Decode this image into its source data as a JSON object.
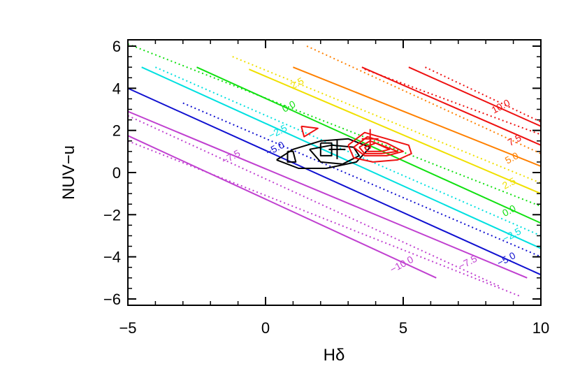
{
  "chart_data": {
    "type": "line",
    "xlabel": "Hδ",
    "ylabel": "NUV−u",
    "xlim": [
      -5,
      10
    ],
    "ylim": [
      -6.3,
      6.3
    ],
    "x_ticks": [
      {
        "value": -5,
        "label": "−5"
      },
      {
        "value": 0,
        "label": "0"
      },
      {
        "value": 5,
        "label": "5"
      },
      {
        "value": 10,
        "label": "10"
      }
    ],
    "y_ticks": [
      {
        "value": -6,
        "label": "−6"
      },
      {
        "value": -4,
        "label": "−4"
      },
      {
        "value": -2,
        "label": "−2"
      },
      {
        "value": 0,
        "label": "0"
      },
      {
        "value": 2,
        "label": "2"
      },
      {
        "value": 4,
        "label": "4"
      },
      {
        "value": 6,
        "label": "6"
      }
    ],
    "isolines": [
      {
        "level": "-10.0",
        "color": "#c040d0",
        "solid": [
          [
            -5,
            1.75
          ],
          [
            6.2,
            -5.0
          ]
        ],
        "dotted": [
          [
            -5,
            2.7
          ],
          [
            8.5,
            -5.4
          ]
        ],
        "label": {
          "text": "−10.0",
          "x": 5.0,
          "y": -4.5
        }
      },
      {
        "level": "-7.5",
        "color": "#c040d0",
        "solid": [
          [
            -5,
            2.9
          ],
          [
            9.5,
            -5.0
          ]
        ],
        "dotted": [
          [
            -5,
            1.5
          ],
          [
            9.3,
            -5.9
          ]
        ],
        "label": {
          "text": "−7.5",
          "x": 7.4,
          "y": -4.4
        }
      },
      {
        "level": "-7.5b",
        "color": "#c040d0",
        "solid": [],
        "dotted": [],
        "label": {
          "text": "−7.5",
          "x": -1.2,
          "y": 0.6
        }
      },
      {
        "level": "-5.0",
        "color": "#1010d0",
        "solid": [
          [
            -5,
            4.0
          ],
          [
            10,
            -4.85
          ]
        ],
        "dotted": [
          [
            -3.0,
            3.3
          ],
          [
            10,
            -4.0
          ]
        ],
        "label": {
          "text": "−5.0",
          "x": 8.8,
          "y": -4.25
        }
      },
      {
        "level": "-5.0b",
        "color": "#1010d0",
        "solid": [],
        "dotted": [],
        "label": {
          "text": "−5.0",
          "x": 0.4,
          "y": 1.0
        }
      },
      {
        "level": "-2.5",
        "color": "#00e0e0",
        "solid": [
          [
            -4.5,
            5.0
          ],
          [
            10,
            -3.6
          ]
        ],
        "dotted": [
          [
            -4.0,
            5.0
          ],
          [
            10,
            -3.0
          ]
        ],
        "label": {
          "text": "−2.5",
          "x": 9.0,
          "y": -3.1
        }
      },
      {
        "level": "-2.5b",
        "color": "#00e0e0",
        "solid": [],
        "dotted": [],
        "label": {
          "text": "−2.5",
          "x": 0.5,
          "y": 1.8
        }
      },
      {
        "level": "0.0",
        "color": "#10e010",
        "solid": [
          [
            -2.5,
            5.0
          ],
          [
            10,
            -2.4
          ]
        ],
        "dotted": [
          [
            -5,
            6.1
          ],
          [
            10,
            -1.6
          ]
        ],
        "label": {
          "text": "0.0",
          "x": 8.9,
          "y": -1.95
        }
      },
      {
        "level": "0.0b",
        "color": "#10e010",
        "solid": [],
        "dotted": [],
        "label": {
          "text": "0.0",
          "x": 0.9,
          "y": 3.0
        }
      },
      {
        "level": "2.5",
        "color": "#f0e000",
        "solid": [
          [
            -0.6,
            4.9
          ],
          [
            10,
            -1.0
          ]
        ],
        "dotted": [
          [
            -1.2,
            5.5
          ],
          [
            10,
            -0.5
          ]
        ],
        "label": {
          "text": "2.5",
          "x": 8.9,
          "y": -0.65
        }
      },
      {
        "level": "2.5b",
        "color": "#f0e000",
        "solid": [],
        "dotted": [],
        "label": {
          "text": "2.5",
          "x": 1.2,
          "y": 4.1
        }
      },
      {
        "level": "5.0",
        "color": "#ff8000",
        "solid": [
          [
            1.0,
            5.0
          ],
          [
            10,
            0.3
          ]
        ],
        "dotted": [
          [
            1.5,
            6.0
          ],
          [
            10,
            0.9
          ]
        ],
        "label": {
          "text": "5.0",
          "x": 9.0,
          "y": 0.55
        }
      },
      {
        "level": "7.5",
        "color": "#ee1010",
        "solid": [
          [
            3.5,
            5.0
          ],
          [
            10,
            1.3
          ]
        ],
        "dotted": [
          [
            3.6,
            4.9
          ],
          [
            10,
            1.8
          ]
        ],
        "label": {
          "text": "7.5",
          "x": 9.1,
          "y": 1.4
        }
      },
      {
        "level": "10.0",
        "color": "#ee1010",
        "solid": [
          [
            5.2,
            5.0
          ],
          [
            10,
            2.2
          ]
        ],
        "dotted": [
          [
            5.8,
            5.0
          ],
          [
            10,
            2.4
          ]
        ],
        "label": {
          "text": "10.0",
          "x": 8.6,
          "y": 3.0
        }
      }
    ],
    "density_contours": [
      {
        "name": "black",
        "color": "#000000",
        "paths": [
          [
            [
              0.4,
              0.6
            ],
            [
              1.0,
              1.1
            ],
            [
              2.0,
              1.5
            ],
            [
              3.0,
              1.6
            ],
            [
              3.8,
              1.2
            ],
            [
              3.3,
              0.5
            ],
            [
              2.2,
              0.2
            ],
            [
              1.2,
              0.2
            ],
            [
              0.4,
              0.6
            ]
          ],
          [
            [
              1.6,
              1.1
            ],
            [
              2.4,
              1.3
            ],
            [
              3.2,
              1.2
            ],
            [
              3.4,
              0.8
            ],
            [
              2.8,
              0.4
            ],
            [
              2.0,
              0.5
            ],
            [
              1.6,
              1.1
            ]
          ],
          [
            [
              0.8,
              1.0
            ],
            [
              1.0,
              1.0
            ],
            [
              1.1,
              0.5
            ],
            [
              0.8,
              0.5
            ],
            [
              0.8,
              1.0
            ]
          ],
          [
            [
              2.0,
              1.4
            ],
            [
              2.4,
              1.4
            ],
            [
              2.4,
              0.8
            ],
            [
              2.0,
              0.8
            ],
            [
              2.0,
              1.4
            ]
          ]
        ]
      },
      {
        "name": "red",
        "color": "#ee1010",
        "paths": [
          [
            [
              1.3,
              2.2
            ],
            [
              1.9,
              2.1
            ],
            [
              1.4,
              1.7
            ],
            [
              1.3,
              2.2
            ]
          ],
          [
            [
              3.0,
              1.3
            ],
            [
              3.6,
              1.9
            ],
            [
              4.4,
              1.6
            ],
            [
              5.2,
              1.3
            ],
            [
              5.3,
              0.9
            ],
            [
              4.8,
              0.6
            ],
            [
              3.9,
              0.5
            ],
            [
              3.2,
              0.7
            ],
            [
              3.0,
              1.3
            ]
          ],
          [
            [
              3.2,
              1.2
            ],
            [
              3.7,
              1.7
            ],
            [
              4.4,
              1.4
            ],
            [
              5.0,
              1.0
            ],
            [
              4.4,
              0.8
            ],
            [
              3.6,
              0.8
            ],
            [
              3.2,
              1.2
            ]
          ],
          [
            [
              3.4,
              1.2
            ],
            [
              3.8,
              1.5
            ],
            [
              4.4,
              1.2
            ],
            [
              4.8,
              1.0
            ],
            [
              4.2,
              0.9
            ],
            [
              3.6,
              0.9
            ],
            [
              3.4,
              1.2
            ]
          ],
          [
            [
              3.6,
              1.2
            ],
            [
              4.0,
              1.4
            ],
            [
              4.5,
              1.1
            ],
            [
              4.2,
              1.0
            ],
            [
              3.7,
              1.0
            ],
            [
              3.6,
              1.2
            ]
          ]
        ]
      }
    ],
    "markers": [
      {
        "color": "#000000",
        "x": 2.6,
        "y": 1.1
      },
      {
        "color": "#ee1010",
        "x": 3.8,
        "y": 1.6
      }
    ]
  }
}
